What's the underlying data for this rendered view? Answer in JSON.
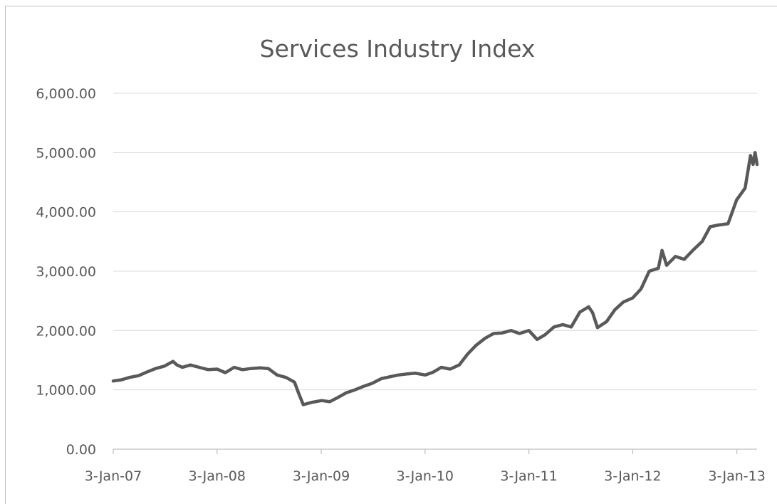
{
  "chart_data": {
    "type": "line",
    "title": "Services Industry Index",
    "xlabel": "",
    "ylabel": "",
    "ylim": [
      0,
      6000
    ],
    "y_ticks": [
      "0.00",
      "1,000.00",
      "2,000.00",
      "3,000.00",
      "4,000.00",
      "5,000.00",
      "6,000.00"
    ],
    "y_tick_values": [
      0,
      1000,
      2000,
      3000,
      4000,
      5000,
      6000
    ],
    "x_ticks": [
      "3-Jan-07",
      "3-Jan-08",
      "3-Jan-09",
      "3-Jan-10",
      "3-Jan-11",
      "3-Jan-12",
      "3-Jan-13"
    ],
    "xlim": [
      "2007-01-03",
      "2013-03-15"
    ],
    "grid": true,
    "legend": "none",
    "series": [
      {
        "color": "#595959",
        "x": [
          "2007-01-03",
          "2007-02-01",
          "2007-03-01",
          "2007-04-02",
          "2007-05-01",
          "2007-06-01",
          "2007-07-02",
          "2007-08-01",
          "2007-08-15",
          "2007-09-03",
          "2007-10-01",
          "2007-11-01",
          "2007-12-03",
          "2008-01-03",
          "2008-02-01",
          "2008-03-03",
          "2008-04-01",
          "2008-05-01",
          "2008-06-02",
          "2008-07-01",
          "2008-08-01",
          "2008-09-01",
          "2008-10-01",
          "2008-10-15",
          "2008-11-01",
          "2008-12-01",
          "2009-01-05",
          "2009-02-02",
          "2009-03-02",
          "2009-04-01",
          "2009-05-01",
          "2009-06-01",
          "2009-07-01",
          "2009-08-03",
          "2009-09-01",
          "2009-10-01",
          "2009-11-02",
          "2009-12-01",
          "2010-01-04",
          "2010-02-01",
          "2010-03-01",
          "2010-04-01",
          "2010-05-03",
          "2010-06-01",
          "2010-07-01",
          "2010-08-02",
          "2010-09-01",
          "2010-10-01",
          "2010-11-01",
          "2010-12-01",
          "2011-01-03",
          "2011-02-01",
          "2011-03-01",
          "2011-04-01",
          "2011-05-02",
          "2011-06-01",
          "2011-07-01",
          "2011-08-01",
          "2011-08-15",
          "2011-09-01",
          "2011-10-03",
          "2011-11-01",
          "2011-12-01",
          "2012-01-03",
          "2012-02-01",
          "2012-03-01",
          "2012-04-02",
          "2012-04-15",
          "2012-05-01",
          "2012-06-01",
          "2012-07-02",
          "2012-08-01",
          "2012-09-03",
          "2012-10-01",
          "2012-11-01",
          "2012-12-03",
          "2013-01-02",
          "2013-02-01",
          "2013-02-20",
          "2013-03-01",
          "2013-03-08",
          "2013-03-15"
        ],
        "values": [
          1150,
          1170,
          1210,
          1240,
          1300,
          1360,
          1400,
          1480,
          1420,
          1380,
          1420,
          1380,
          1340,
          1350,
          1290,
          1380,
          1340,
          1360,
          1370,
          1360,
          1250,
          1210,
          1130,
          950,
          750,
          790,
          820,
          800,
          870,
          950,
          1000,
          1060,
          1110,
          1190,
          1220,
          1250,
          1270,
          1280,
          1250,
          1300,
          1380,
          1350,
          1420,
          1600,
          1750,
          1870,
          1950,
          1960,
          2000,
          1950,
          2000,
          1850,
          1930,
          2060,
          2100,
          2060,
          2310,
          2400,
          2300,
          2050,
          2150,
          2350,
          2480,
          2550,
          2700,
          3000,
          3050,
          3350,
          3100,
          3250,
          3200,
          3350,
          3500,
          3750,
          3780,
          3800,
          4200,
          4400,
          4950,
          4800,
          5000,
          4800
        ]
      }
    ]
  }
}
